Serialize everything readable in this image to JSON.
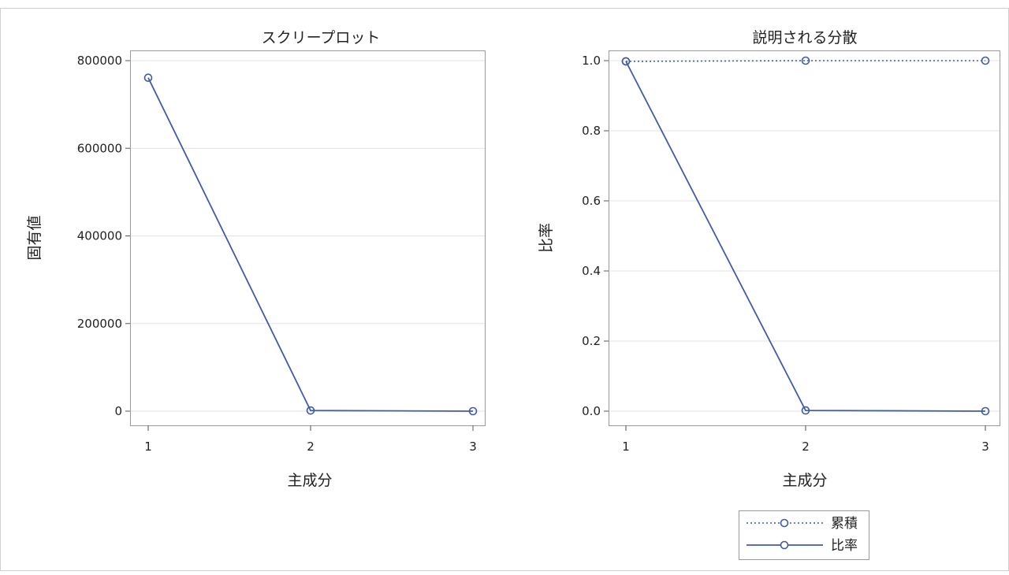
{
  "colors": {
    "series": "#3F5CA8",
    "grid": "#e3e3e3",
    "frame": "#9a9a9a",
    "text": "#222222"
  },
  "chart_data": [
    {
      "type": "line",
      "title": "スクリープロット",
      "xlabel": "主成分",
      "ylabel": "固有値",
      "x": [
        1,
        2,
        3
      ],
      "xticks": [
        "1",
        "2",
        "3"
      ],
      "ylim": [
        0,
        800000
      ],
      "yticks": [
        "0",
        "200000",
        "400000",
        "600000",
        "800000"
      ],
      "ytick_values": [
        0,
        200000,
        400000,
        600000,
        800000
      ],
      "grid": true,
      "series": [
        {
          "values": [
            761000,
            1500,
            0
          ],
          "line_style": "solid",
          "marker": "circle"
        }
      ]
    },
    {
      "type": "line",
      "title": "説明される分散",
      "xlabel": "主成分",
      "ylabel": "比率",
      "x": [
        1,
        2,
        3
      ],
      "xticks": [
        "1",
        "2",
        "3"
      ],
      "ylim": [
        0,
        1
      ],
      "yticks": [
        "0.0",
        "0.2",
        "0.4",
        "0.6",
        "0.8",
        "1.0"
      ],
      "ytick_values": [
        0,
        0.2,
        0.4,
        0.6,
        0.8,
        1.0
      ],
      "grid": true,
      "legend_position": "bottom",
      "series": [
        {
          "name": "累積",
          "values": [
            0.998,
            1.0,
            1.0
          ],
          "line_style": "dotted",
          "marker": "circle"
        },
        {
          "name": "比率",
          "values": [
            0.998,
            0.002,
            0.0
          ],
          "line_style": "solid",
          "marker": "circle"
        }
      ]
    }
  ]
}
